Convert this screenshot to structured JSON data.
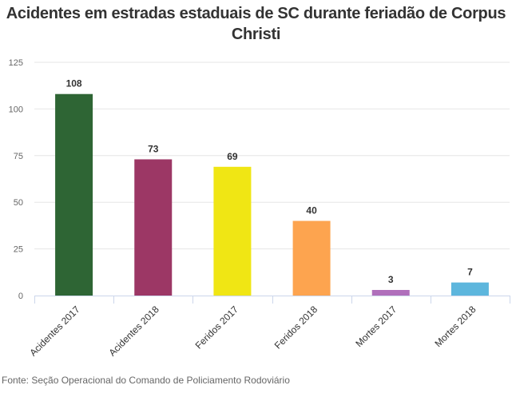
{
  "chart_data": {
    "type": "bar",
    "title": "Acidentes em estradas estaduais de SC durante feriadão de Corpus Christi",
    "categories": [
      "Acidentes 2017",
      "Acidentes 2018",
      "Feridos 2017",
      "Feridos 2018",
      "Mortes 2017",
      "Mortes 2018"
    ],
    "values": [
      108,
      73,
      69,
      40,
      3,
      7
    ],
    "colors": [
      "#2e6534",
      "#9c3765",
      "#f0e614",
      "#fda44f",
      "#b06fbb",
      "#5db6dd"
    ],
    "xlabel": "",
    "ylabel": "",
    "ylim": [
      0,
      125
    ],
    "yticks": [
      0,
      25,
      50,
      75,
      100,
      125
    ],
    "grid": true,
    "legend": "none",
    "data_labels": true,
    "source": "Fonte: Seção Operacional do Comando de Policiamento Rodoviário"
  }
}
